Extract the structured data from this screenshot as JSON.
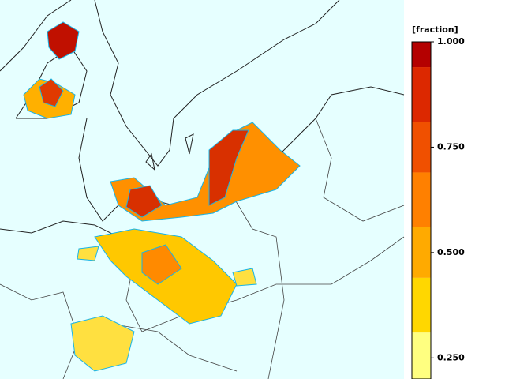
{
  "colorbar": {
    "label": "[fraction]",
    "lim": [
      0.2,
      1.0
    ],
    "ticks": [
      {
        "value": 1.0,
        "label": "1.000"
      },
      {
        "value": 0.75,
        "label": "0.750"
      },
      {
        "value": 0.5,
        "label": "0.500"
      },
      {
        "value": 0.25,
        "label": "0.250"
      }
    ],
    "bands": [
      {
        "from": 0.94,
        "to": 1.0,
        "color": "#b40000"
      },
      {
        "from": 0.81,
        "to": 0.94,
        "color": "#dc2800"
      },
      {
        "from": 0.69,
        "to": 0.81,
        "color": "#f05000"
      },
      {
        "from": 0.56,
        "to": 0.69,
        "color": "#ff8000"
      },
      {
        "from": 0.44,
        "to": 0.56,
        "color": "#ffaa00"
      },
      {
        "from": 0.31,
        "to": 0.44,
        "color": "#ffd700"
      },
      {
        "from": 0.2,
        "to": 0.31,
        "color": "#ffff80"
      }
    ]
  }
}
